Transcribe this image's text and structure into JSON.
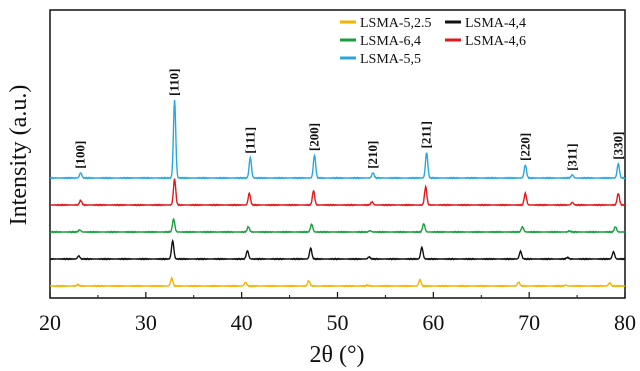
{
  "chart_data": {
    "type": "line",
    "title": "",
    "xlabel": "2θ (°)",
    "ylabel": "Intensity (a.u.)",
    "xlim": [
      20,
      80
    ],
    "xticks": [
      20,
      30,
      40,
      50,
      60,
      70,
      80
    ],
    "grid": false,
    "legend_position": "top-right",
    "series": [
      {
        "name": "LSMA-5,2.5",
        "color": "#f5b400",
        "offset": 0,
        "peaks": [
          [
            22.9,
            0.05
          ],
          [
            32.7,
            0.3
          ],
          [
            40.4,
            0.14
          ],
          [
            47.0,
            0.2
          ],
          [
            53.1,
            0.03
          ],
          [
            58.6,
            0.24
          ],
          [
            68.9,
            0.15
          ],
          [
            73.8,
            0.03
          ],
          [
            78.4,
            0.12
          ]
        ]
      },
      {
        "name": "LSMA-4,4",
        "color": "#111111",
        "offset": 1,
        "peaks": [
          [
            23.0,
            0.12
          ],
          [
            32.8,
            0.7
          ],
          [
            40.6,
            0.32
          ],
          [
            47.2,
            0.42
          ],
          [
            53.3,
            0.08
          ],
          [
            58.8,
            0.45
          ],
          [
            69.1,
            0.3
          ],
          [
            74.0,
            0.06
          ],
          [
            78.8,
            0.28
          ]
        ]
      },
      {
        "name": "LSMA-6,4",
        "color": "#1a9e3f",
        "offset": 2,
        "peaks": [
          [
            23.1,
            0.08
          ],
          [
            32.9,
            0.5
          ],
          [
            40.7,
            0.2
          ],
          [
            47.3,
            0.3
          ],
          [
            53.4,
            0.05
          ],
          [
            59.0,
            0.32
          ],
          [
            69.3,
            0.2
          ],
          [
            74.2,
            0.04
          ],
          [
            79.0,
            0.2
          ]
        ]
      },
      {
        "name": "LSMA-4,6",
        "color": "#e0191b",
        "offset": 3,
        "peaks": [
          [
            23.2,
            0.18
          ],
          [
            33.0,
            1.0
          ],
          [
            40.8,
            0.45
          ],
          [
            47.5,
            0.55
          ],
          [
            53.6,
            0.12
          ],
          [
            59.2,
            0.7
          ],
          [
            69.6,
            0.45
          ],
          [
            74.5,
            0.1
          ],
          [
            79.3,
            0.45
          ]
        ]
      },
      {
        "name": "LSMA-5,5",
        "color": "#29a8e0",
        "offset": 4,
        "peaks": [
          [
            23.2,
            0.2
          ],
          [
            33.0,
            3.0
          ],
          [
            40.9,
            0.78
          ],
          [
            47.6,
            0.88
          ],
          [
            53.7,
            0.2
          ],
          [
            59.3,
            0.98
          ],
          [
            69.6,
            0.5
          ],
          [
            74.5,
            0.12
          ],
          [
            79.3,
            0.55
          ]
        ]
      }
    ],
    "annotations": [
      {
        "text": "[100]",
        "x": 23.2
      },
      {
        "text": "[110]",
        "x": 33.0
      },
      {
        "text": "[111]",
        "x": 40.9
      },
      {
        "text": "[200]",
        "x": 47.6
      },
      {
        "text": "[210]",
        "x": 53.7
      },
      {
        "text": "[211]",
        "x": 59.3
      },
      {
        "text": "[220]",
        "x": 69.6
      },
      {
        "text": "[311]",
        "x": 74.5
      },
      {
        "text": "[330]",
        "x": 79.3
      }
    ]
  }
}
